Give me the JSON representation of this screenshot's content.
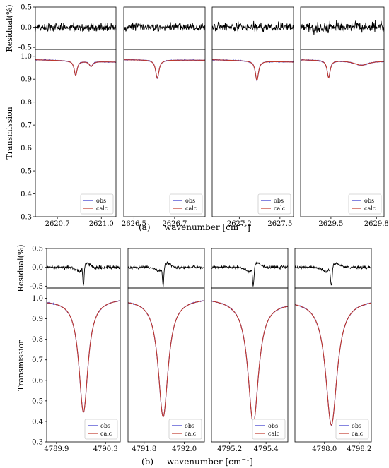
{
  "figure": {
    "panel_a_caption": "(a)",
    "panel_b_caption": "(b)",
    "xlabel": "wavenumber [cm",
    "xlabel_sup": "−1",
    "xlabel_close": "]"
  },
  "chart_data": [
    {
      "type": "line",
      "panel": "a",
      "residual_ylabel": "Residual(%)",
      "transmission_ylabel": "Transmission",
      "residual_ylim": [
        -0.55,
        0.5
      ],
      "residual_yticks": [
        "0.5",
        "0.0",
        "-0.5"
      ],
      "residual_ytick_values": [
        0.5,
        0.0,
        -0.5
      ],
      "transmission_ylim": [
        0.3,
        1.03
      ],
      "transmission_yticks": [
        "1.0",
        "0.9",
        "0.8",
        "0.7",
        "0.6",
        "0.5",
        "0.4",
        "0.3"
      ],
      "transmission_ytick_values": [
        1.0,
        0.9,
        0.8,
        0.7,
        0.6,
        0.5,
        0.4,
        0.3
      ],
      "legend": {
        "location": "lower-right",
        "entries": [
          "obs",
          "calc"
        ]
      },
      "series_colors": {
        "obs": "#3333cc",
        "calc": "#c0392b",
        "residual": "#000000"
      },
      "subplots": [
        {
          "xlim": [
            2620.55,
            2621.1
          ],
          "xticks": [
            "2620.7",
            "2621.0"
          ],
          "xtick_values": [
            2620.7,
            2621.0
          ],
          "baseline": [
            0.985,
            0.975
          ],
          "lines": [
            {
              "center": 2620.825,
              "depth": 0.063,
              "width": 0.012
            },
            {
              "center": 2620.93,
              "depth": 0.022,
              "width": 0.015
            }
          ],
          "residual_noise": 0.1
        },
        {
          "xlim": [
            2626.45,
            2626.85
          ],
          "xticks": [
            "2626.5",
            "2626.7"
          ],
          "xtick_values": [
            2626.5,
            2626.7
          ],
          "baseline": [
            0.985,
            0.983
          ],
          "lines": [
            {
              "center": 2626.615,
              "depth": 0.08,
              "width": 0.01
            }
          ],
          "residual_noise": 0.1
        },
        {
          "xlim": [
            2627.0,
            2627.6
          ],
          "xticks": [
            "2627.2",
            "2627.5"
          ],
          "xtick_values": [
            2627.2,
            2627.5
          ],
          "baseline": [
            0.985,
            0.975
          ],
          "lines": [
            {
              "center": 2627.33,
              "depth": 0.085,
              "width": 0.014
            }
          ],
          "residual_noise": 0.1
        },
        {
          "xlim": [
            2629.3,
            2629.85
          ],
          "xticks": [
            "2629.5",
            "2629.8"
          ],
          "xtick_values": [
            2629.5,
            2629.8
          ],
          "baseline": [
            0.985,
            0.98
          ],
          "lines": [
            {
              "center": 2629.485,
              "depth": 0.075,
              "width": 0.012
            },
            {
              "center": 2629.7,
              "depth": 0.02,
              "width": 0.06
            }
          ],
          "residual_noise": 0.13
        }
      ]
    },
    {
      "type": "line",
      "panel": "b",
      "residual_ylabel": "Residual(%)",
      "transmission_ylabel": "Transmission",
      "residual_ylim": [
        -0.55,
        0.5
      ],
      "residual_yticks": [
        "0.5",
        "0.0",
        "-0.5"
      ],
      "residual_ytick_values": [
        0.5,
        0.0,
        -0.5
      ],
      "transmission_ylim": [
        0.3,
        1.05
      ],
      "transmission_yticks": [
        "1.0",
        "0.9",
        "0.8",
        "0.7",
        "0.6",
        "0.5",
        "0.4",
        "0.3"
      ],
      "transmission_ytick_values": [
        1.0,
        0.9,
        0.8,
        0.7,
        0.6,
        0.5,
        0.4,
        0.3
      ],
      "legend": {
        "location": "lower-right",
        "entries": [
          "obs",
          "calc"
        ]
      },
      "series_colors": {
        "obs": "#3333cc",
        "calc": "#c0392b",
        "residual": "#000000"
      },
      "subplots": [
        {
          "xlim": [
            4789.82,
            4790.42
          ],
          "xticks": [
            "4789.9",
            "4790.3"
          ],
          "xtick_values": [
            4789.9,
            4790.3
          ],
          "baseline": [
            0.99,
            1.0
          ],
          "lines": [
            {
              "center": 4790.12,
              "depth": 0.55,
              "width": 0.045
            }
          ],
          "residual_noise": 0.05
        },
        {
          "xlim": [
            4791.72,
            4792.1
          ],
          "xticks": [
            "4791.8",
            "4792.0"
          ],
          "xtick_values": [
            4791.8,
            4792.0
          ],
          "baseline": [
            0.995,
            1.0
          ],
          "lines": [
            {
              "center": 4791.895,
              "depth": 0.575,
              "width": 0.03
            }
          ],
          "residual_noise": 0.04
        },
        {
          "xlim": [
            4795.1,
            4795.52
          ],
          "xticks": [
            "4795.2",
            "4795.4"
          ],
          "xtick_values": [
            4795.2,
            4795.4
          ],
          "baseline": [
            1.0,
            0.98
          ],
          "lines": [
            {
              "center": 4795.33,
              "depth": 0.6,
              "width": 0.035
            }
          ],
          "residual_noise": 0.04
        },
        {
          "xlim": [
            4797.83,
            4798.27
          ],
          "xticks": [
            "4798.0",
            "4798.2"
          ],
          "xtick_values": [
            4798.0,
            4798.2
          ],
          "baseline": [
            0.99,
            0.995
          ],
          "lines": [
            {
              "center": 4798.04,
              "depth": 0.61,
              "width": 0.04
            }
          ],
          "residual_noise": 0.04
        }
      ]
    }
  ]
}
